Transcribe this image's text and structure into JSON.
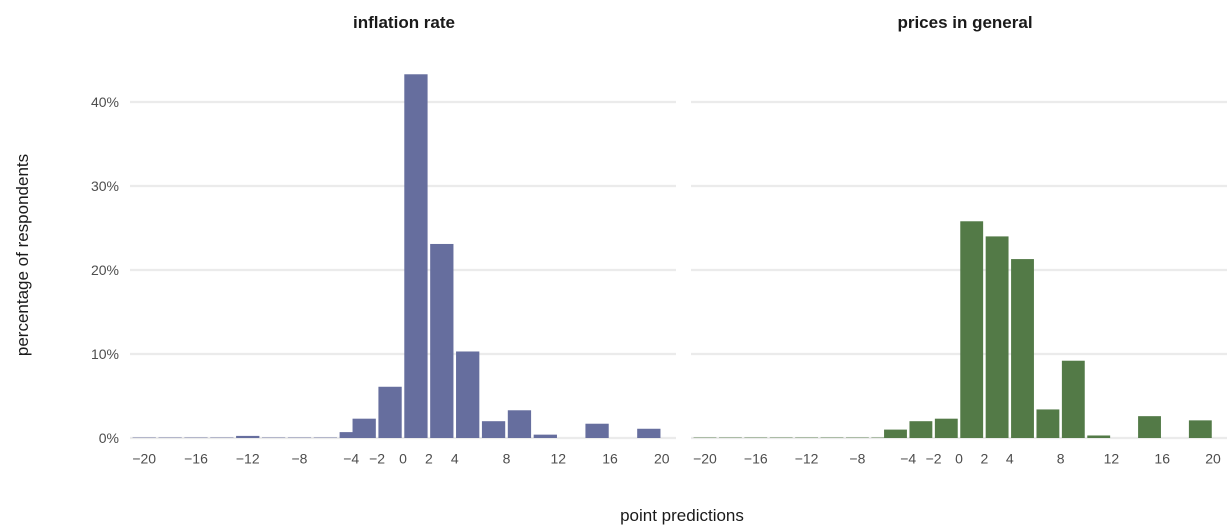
{
  "chart_data": {
    "type": "bar",
    "xlabel": "point predictions",
    "ylabel": "percentage of respondents",
    "ylim": [
      0,
      45
    ],
    "y_ticks": [
      {
        "value": 0,
        "label": "0%"
      },
      {
        "value": 10,
        "label": "10%"
      },
      {
        "value": 20,
        "label": "20%"
      },
      {
        "value": 30,
        "label": "30%"
      },
      {
        "value": 40,
        "label": "40%"
      }
    ],
    "x_ticks": [
      {
        "value": -20,
        "label": "−20"
      },
      {
        "value": -16,
        "label": "−16"
      },
      {
        "value": -12,
        "label": "−12"
      },
      {
        "value": -8,
        "label": "−8"
      },
      {
        "value": -4,
        "label": "−4"
      },
      {
        "value": -2,
        "label": "−2"
      },
      {
        "value": 0,
        "label": "0"
      },
      {
        "value": 2,
        "label": "2"
      },
      {
        "value": 4,
        "label": "4"
      },
      {
        "value": 8,
        "label": "8"
      },
      {
        "value": 12,
        "label": "12"
      },
      {
        "value": 16,
        "label": "16"
      },
      {
        "value": 20,
        "label": "20"
      }
    ],
    "grid": true,
    "panels": [
      {
        "title": "inflation rate",
        "color": "#666e9e",
        "bars": [
          {
            "x": -20,
            "value": 0.05
          },
          {
            "x": -18,
            "value": 0.05
          },
          {
            "x": -16,
            "value": 0.05
          },
          {
            "x": -14,
            "value": 0.05
          },
          {
            "x": -12,
            "value": 0.25
          },
          {
            "x": -10,
            "value": 0.05
          },
          {
            "x": -8,
            "value": 0.05
          },
          {
            "x": -6,
            "value": 0.05
          },
          {
            "x": -4,
            "value": 0.7
          },
          {
            "x": -3,
            "value": 2.3
          },
          {
            "x": -1,
            "value": 6.1
          },
          {
            "x": 1,
            "value": 43.3
          },
          {
            "x": 3,
            "value": 23.1
          },
          {
            "x": 5,
            "value": 10.3
          },
          {
            "x": 7,
            "value": 2.0
          },
          {
            "x": 9,
            "value": 3.3
          },
          {
            "x": 11,
            "value": 0.4
          },
          {
            "x": 15,
            "value": 1.7
          },
          {
            "x": 19,
            "value": 1.1
          }
        ]
      },
      {
        "title": "prices in general",
        "color": "#537a47",
        "bars": [
          {
            "x": -20,
            "value": 0.05
          },
          {
            "x": -18,
            "value": 0.05
          },
          {
            "x": -16,
            "value": 0.05
          },
          {
            "x": -14,
            "value": 0.05
          },
          {
            "x": -12,
            "value": 0.05
          },
          {
            "x": -10,
            "value": 0.05
          },
          {
            "x": -8,
            "value": 0.05
          },
          {
            "x": -6,
            "value": 0.05
          },
          {
            "x": -5,
            "value": 1.0
          },
          {
            "x": -3,
            "value": 2.0
          },
          {
            "x": -1,
            "value": 2.3
          },
          {
            "x": 1,
            "value": 25.8
          },
          {
            "x": 3,
            "value": 24.0
          },
          {
            "x": 5,
            "value": 21.3
          },
          {
            "x": 7,
            "value": 3.4
          },
          {
            "x": 9,
            "value": 9.2
          },
          {
            "x": 11,
            "value": 0.3
          },
          {
            "x": 15,
            "value": 2.6
          },
          {
            "x": 19,
            "value": 2.1
          }
        ]
      }
    ]
  }
}
